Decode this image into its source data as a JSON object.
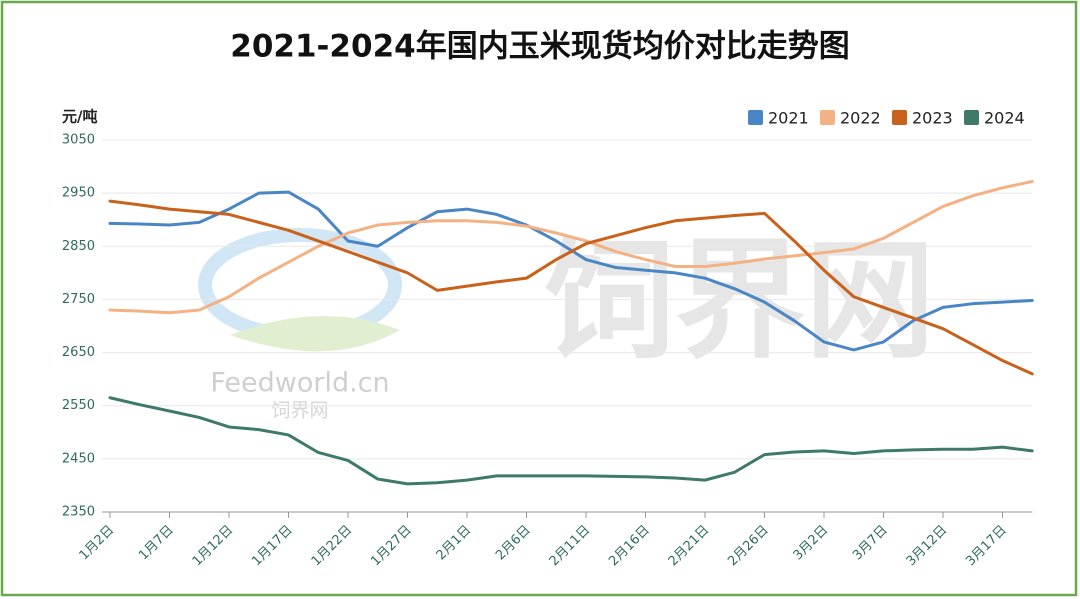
{
  "chart_data": {
    "type": "line",
    "title": "2021-2024年国内玉米现货均价对比走势图",
    "y_label": "元/吨",
    "watermark": {
      "logo_en": "Feedworld.cn",
      "logo_cn": "饲界网",
      "big": "饲界网"
    },
    "categories": [
      "1月2日",
      null,
      "1月7日",
      null,
      "1月12日",
      null,
      "1月17日",
      null,
      "1月22日",
      null,
      "1月27日",
      null,
      "2月1日",
      null,
      "2月6日",
      null,
      "2月11日",
      null,
      "2月16日",
      null,
      "2月21日",
      null,
      "2月26日",
      null,
      "3月2日",
      null,
      "3月7日",
      null,
      "3月12日",
      null,
      "3月17日",
      null
    ],
    "ylim": [
      2350,
      3050
    ],
    "yticks": [
      2350,
      2450,
      2550,
      2650,
      2750,
      2850,
      2950,
      3050
    ],
    "grid": true,
    "legend": "top-right",
    "series": [
      {
        "name": "2021",
        "color": "#4a86c5",
        "values": [
          2893,
          2892,
          2890,
          2895,
          2920,
          2950,
          2952,
          2920,
          2860,
          2850,
          2885,
          2915,
          2920,
          2910,
          2890,
          2860,
          2825,
          2810,
          2805,
          2800,
          2790,
          2770,
          2745,
          2710,
          2670,
          2655,
          2670,
          2710,
          2735,
          2742,
          2745,
          2748
        ]
      },
      {
        "name": "2022",
        "color": "#f4b183",
        "values": [
          2730,
          2728,
          2725,
          2730,
          2755,
          2790,
          2820,
          2850,
          2875,
          2890,
          2895,
          2898,
          2898,
          2895,
          2888,
          2875,
          2860,
          2840,
          2825,
          2812,
          2812,
          2818,
          2826,
          2832,
          2838,
          2845,
          2865,
          2895,
          2925,
          2945,
          2960,
          2972
        ]
      },
      {
        "name": "2023",
        "color": "#c8621b",
        "values": [
          2935,
          2928,
          2920,
          2915,
          2910,
          2895,
          2880,
          2860,
          2840,
          2820,
          2800,
          2767,
          2775,
          2783,
          2790,
          2825,
          2855,
          2870,
          2885,
          2898,
          2903,
          2908,
          2912,
          2860,
          2805,
          2755,
          2735,
          2715,
          2695,
          2665,
          2635,
          2610
        ]
      },
      {
        "name": "2024",
        "color": "#3d7a6a",
        "values": [
          2565,
          2552,
          2540,
          2528,
          2510,
          2505,
          2495,
          2462,
          2447,
          2412,
          2403,
          2405,
          2410,
          2418,
          2418,
          2418,
          2418,
          2417,
          2416,
          2414,
          2410,
          2425,
          2458,
          2463,
          2465,
          2460,
          2465,
          2467,
          2468,
          2468,
          2472,
          2465
        ]
      }
    ]
  }
}
